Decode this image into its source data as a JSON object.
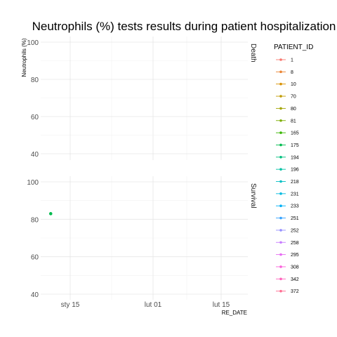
{
  "chart_data": {
    "type": "line",
    "title": "Neutrophils (%) tests results during patient hospitalization",
    "xlabel": "RE_DATE",
    "ylabel": "Neutrophils (%)",
    "x_ticks": [
      "sty 15",
      "lut 01",
      "lut 15"
    ],
    "y_ticks": [
      "40",
      "60",
      "80",
      "100"
    ],
    "ylim": [
      37,
      101
    ],
    "facets": [
      "Death",
      "Survival"
    ],
    "legend_title": "PATIENT_ID",
    "legend_position": "right",
    "grid": true,
    "series": [
      {
        "name": "1",
        "color": "#F8766D",
        "values": []
      },
      {
        "name": "8",
        "color": "#EA8331",
        "values": []
      },
      {
        "name": "10",
        "color": "#D89000",
        "values": []
      },
      {
        "name": "70",
        "color": "#C09B00",
        "values": []
      },
      {
        "name": "80",
        "color": "#A3A500",
        "values": []
      },
      {
        "name": "81",
        "color": "#7CAE00",
        "values": []
      },
      {
        "name": "165",
        "color": "#39B600",
        "values": []
      },
      {
        "name": "175",
        "color": "#00BB4E",
        "values": [
          {
            "facet": "Survival",
            "x": "2020-01-11",
            "y": 83
          }
        ]
      },
      {
        "name": "194",
        "color": "#00BF7D",
        "values": []
      },
      {
        "name": "196",
        "color": "#00C1A3",
        "values": []
      },
      {
        "name": "218",
        "color": "#00BFC4",
        "values": []
      },
      {
        "name": "231",
        "color": "#00BAE0",
        "values": []
      },
      {
        "name": "233",
        "color": "#00B0F6",
        "values": []
      },
      {
        "name": "251",
        "color": "#35A2FF",
        "values": []
      },
      {
        "name": "252",
        "color": "#9590FF",
        "values": []
      },
      {
        "name": "258",
        "color": "#C77CFF",
        "values": []
      },
      {
        "name": "295",
        "color": "#E76BF3",
        "values": []
      },
      {
        "name": "308",
        "color": "#FA62DB",
        "values": []
      },
      {
        "name": "342",
        "color": "#FF62BC",
        "values": []
      },
      {
        "name": "372",
        "color": "#FF6C91",
        "values": []
      }
    ]
  }
}
